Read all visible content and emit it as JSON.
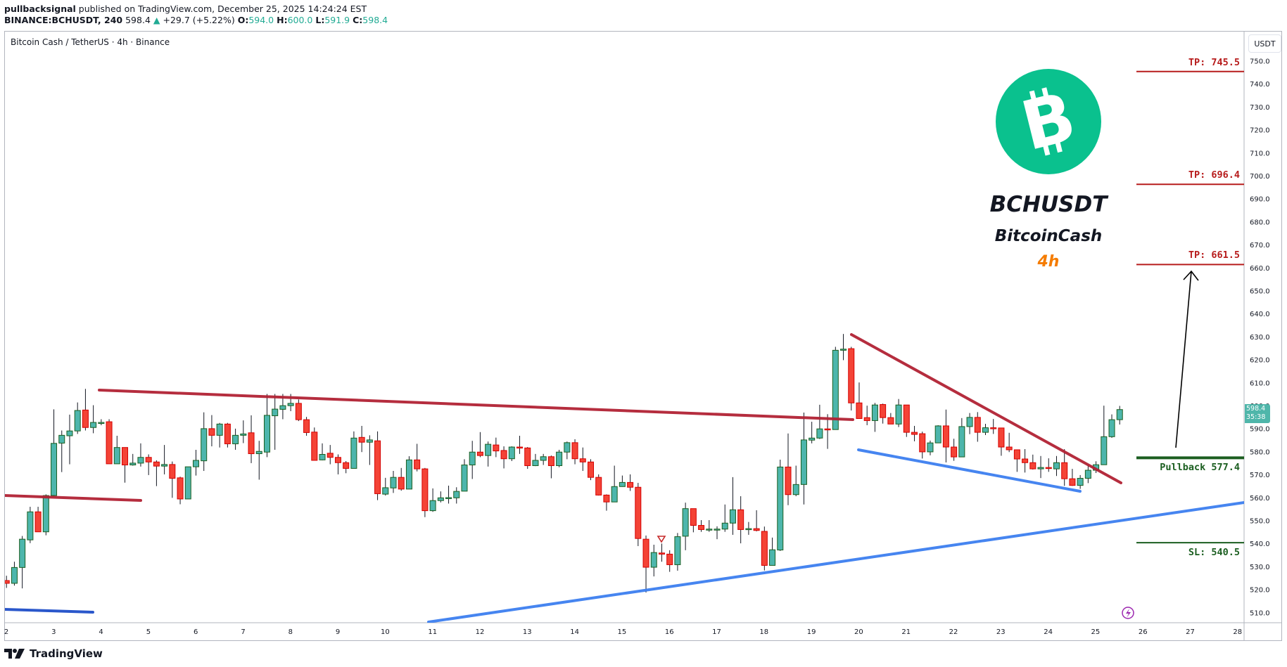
{
  "header": {
    "publisher": "pullbacksignal",
    "published_text": " published on TradingView.com, December 25, 2025 14:24:24 EST",
    "symbol_interval": "BINANCE:BCHUSDT, 240",
    "last": "598.4",
    "change": "+29.7 (+5.22%)",
    "o_label": "O:",
    "o": "594.0",
    "h_label": "H:",
    "h": "600.0",
    "l_label": "L:",
    "l": "591.9",
    "c_label": "C:",
    "c": "598.4"
  },
  "chart_title": "Bitcoin Cash / TetherUS · 4h · Binance",
  "currency": "USDT",
  "last_price_tag": {
    "price": "598.4",
    "countdown": "35:38"
  },
  "branding": {
    "ticker": "BCHUSDT",
    "name": "BitcoinCash",
    "timeframe": "4h",
    "logo_color": "#0ac18e",
    "timeframe_color": "#f57c00"
  },
  "levels": [
    {
      "label": "TP: 745.5",
      "price": 745.5,
      "color": "#b71c1c"
    },
    {
      "label": "TP: 696.4",
      "price": 696.4,
      "color": "#b71c1c"
    },
    {
      "label": "TP: 661.5",
      "price": 661.5,
      "color": "#b71c1c"
    },
    {
      "label": "Pullback 577.4",
      "price": 577.4,
      "color": "#1b5e20"
    },
    {
      "label": "SL: 540.5",
      "price": 540.5,
      "color": "#1b5e20"
    }
  ],
  "footer": {
    "brand": "TradingView"
  },
  "chart_data": {
    "type": "candlestick",
    "title": "Bitcoin Cash / TetherUS · 4h · Binance",
    "symbol": "BINANCE:BCHUSDT",
    "interval": "4h",
    "ylabel": "USDT",
    "ylim": [
      505,
      755
    ],
    "y_ticks": [
      510,
      520,
      530,
      540,
      550,
      560,
      570,
      580,
      590,
      600,
      610,
      620,
      630,
      640,
      650,
      660,
      670,
      680,
      690,
      700,
      710,
      720,
      730,
      740,
      750
    ],
    "x_ticks": [
      "2",
      "3",
      "4",
      "5",
      "6",
      "7",
      "8",
      "9",
      "10",
      "11",
      "12",
      "13",
      "14",
      "15",
      "16",
      "17",
      "18",
      "19",
      "20",
      "21",
      "22",
      "23",
      "24",
      "25",
      "26",
      "27",
      "28"
    ],
    "grid": false,
    "colors": {
      "up": "#4db6ac",
      "up_border": "#1b5e20",
      "down": "#f44336",
      "down_border": "#d50000"
    },
    "ohlc": [
      [
        523.0,
        535.0,
        520.3,
        524.0
      ],
      [
        524.0,
        526.1,
        520.8,
        522.8
      ],
      [
        522.8,
        532.2,
        521.8,
        529.7
      ],
      [
        529.7,
        543.4,
        520.6,
        542.0
      ],
      [
        541.7,
        556.1,
        540.3,
        553.9
      ],
      [
        553.9,
        556.1,
        545.2,
        545.2
      ],
      [
        545.2,
        561.5,
        543.7,
        561.0
      ],
      [
        561.0,
        598.5,
        560.7,
        583.7
      ],
      [
        583.8,
        589.3,
        571.2,
        587.2
      ],
      [
        587.0,
        596.2,
        574.6,
        589.1
      ],
      [
        589.1,
        601.5,
        587.8,
        598.0
      ],
      [
        598.2,
        607.4,
        589.3,
        590.6
      ],
      [
        590.6,
        600.3,
        588.1,
        592.8
      ],
      [
        592.6,
        594.2,
        591.6,
        592.8
      ],
      [
        593.1,
        594.2,
        574.8,
        574.8
      ],
      [
        574.8,
        587.0,
        574.8,
        581.9
      ],
      [
        581.9,
        581.9,
        566.6,
        574.3
      ],
      [
        574.3,
        579.1,
        574.0,
        575.1
      ],
      [
        575.1,
        583.7,
        573.6,
        577.6
      ],
      [
        577.6,
        578.9,
        569.9,
        575.6
      ],
      [
        575.6,
        576.3,
        565.1,
        573.8
      ],
      [
        573.8,
        583.0,
        570.2,
        574.5
      ],
      [
        574.5,
        575.8,
        560.0,
        568.5
      ],
      [
        568.7,
        569.2,
        557.2,
        559.5
      ],
      [
        559.5,
        573.5,
        559.5,
        573.5
      ],
      [
        573.5,
        580.9,
        569.7,
        576.3
      ],
      [
        576.1,
        597.2,
        571.7,
        590.1
      ],
      [
        590.1,
        596.0,
        582.4,
        587.2
      ],
      [
        587.2,
        592.6,
        581.9,
        592.1
      ],
      [
        592.1,
        592.6,
        581.9,
        583.5
      ],
      [
        583.5,
        590.1,
        580.9,
        587.2
      ],
      [
        587.2,
        593.7,
        583.8,
        587.8
      ],
      [
        588.3,
        595.9,
        575.1,
        579.2
      ],
      [
        579.2,
        584.8,
        567.9,
        580.2
      ],
      [
        579.9,
        605.2,
        577.7,
        595.9
      ],
      [
        595.7,
        605.2,
        580.9,
        598.6
      ],
      [
        598.5,
        605.2,
        594.2,
        600.1
      ],
      [
        600.1,
        605.2,
        597.7,
        601.1
      ],
      [
        601.1,
        602.8,
        593.4,
        594.0
      ],
      [
        594.0,
        595.2,
        587.0,
        588.4
      ],
      [
        588.6,
        590.6,
        576.3,
        576.3
      ],
      [
        576.5,
        583.7,
        576.3,
        578.9
      ],
      [
        579.4,
        583.0,
        574.6,
        577.6
      ],
      [
        577.6,
        578.9,
        570.2,
        575.3
      ],
      [
        575.3,
        576.0,
        570.7,
        572.8
      ],
      [
        572.8,
        588.9,
        572.8,
        586.0
      ],
      [
        586.3,
        591.3,
        579.9,
        584.2
      ],
      [
        584.2,
        587.2,
        574.3,
        585.2
      ],
      [
        584.8,
        588.9,
        559.0,
        561.8
      ],
      [
        561.6,
        568.7,
        561.0,
        564.4
      ],
      [
        564.3,
        571.7,
        562.1,
        568.9
      ],
      [
        568.9,
        573.0,
        563.1,
        563.8
      ],
      [
        563.8,
        578.1,
        563.8,
        576.5
      ],
      [
        576.5,
        583.5,
        571.5,
        572.6
      ],
      [
        572.6,
        573.0,
        551.6,
        554.4
      ],
      [
        554.4,
        564.1,
        553.9,
        558.8
      ],
      [
        558.8,
        562.8,
        558.0,
        560.0
      ],
      [
        560.0,
        565.3,
        557.5,
        560.1
      ],
      [
        560.0,
        564.6,
        557.5,
        562.8
      ],
      [
        562.9,
        576.8,
        562.9,
        574.3
      ],
      [
        574.3,
        584.8,
        568.2,
        579.9
      ],
      [
        579.9,
        588.6,
        577.7,
        578.4
      ],
      [
        578.4,
        584.5,
        573.6,
        583.3
      ],
      [
        583.0,
        586.2,
        577.7,
        580.4
      ],
      [
        580.6,
        582.4,
        572.8,
        577.0
      ],
      [
        577.0,
        582.4,
        576.0,
        582.1
      ],
      [
        582.1,
        587.0,
        579.1,
        581.9
      ],
      [
        581.7,
        582.1,
        572.6,
        574.0
      ],
      [
        574.0,
        579.1,
        573.8,
        576.3
      ],
      [
        576.3,
        579.1,
        574.3,
        577.9
      ],
      [
        577.9,
        578.4,
        568.5,
        574.0
      ],
      [
        574.0,
        580.9,
        573.3,
        579.9
      ],
      [
        579.9,
        584.5,
        576.8,
        584.0
      ],
      [
        584.0,
        585.5,
        574.6,
        577.0
      ],
      [
        577.0,
        581.9,
        571.7,
        575.6
      ],
      [
        575.6,
        576.8,
        567.7,
        568.9
      ],
      [
        568.9,
        570.2,
        561.0,
        561.2
      ],
      [
        561.2,
        561.5,
        554.4,
        558.2
      ],
      [
        558.2,
        574.0,
        558.2,
        564.9
      ],
      [
        564.9,
        569.7,
        564.8,
        566.7
      ],
      [
        566.7,
        570.2,
        563.0,
        564.6
      ],
      [
        564.6,
        566.5,
        539.0,
        542.3
      ],
      [
        542.0,
        543.6,
        518.8,
        529.8
      ],
      [
        529.8,
        539.6,
        525.8,
        536.2
      ],
      [
        536.0,
        540.1,
        532.2,
        535.5
      ],
      [
        535.5,
        537.2,
        527.8,
        530.9
      ],
      [
        530.9,
        544.7,
        528.3,
        543.1
      ],
      [
        543.3,
        557.9,
        537.2,
        555.3
      ],
      [
        555.3,
        555.3,
        545.0,
        548.0
      ],
      [
        548.0,
        550.3,
        545.2,
        546.2
      ],
      [
        546.2,
        550.3,
        545.2,
        546.4
      ],
      [
        546.1,
        547.6,
        542.0,
        546.4
      ],
      [
        546.4,
        557.1,
        545.2,
        549.0
      ],
      [
        549.0,
        569.0,
        543.9,
        554.8
      ],
      [
        554.8,
        560.7,
        540.2,
        546.2
      ],
      [
        546.3,
        549.5,
        543.9,
        546.6
      ],
      [
        546.6,
        554.6,
        545.4,
        545.8
      ],
      [
        545.4,
        547.5,
        528.4,
        530.6
      ],
      [
        530.6,
        542.7,
        530.6,
        537.4
      ],
      [
        537.3,
        576.6,
        536.9,
        573.4
      ],
      [
        573.4,
        588.0,
        556.8,
        561.4
      ],
      [
        561.4,
        574.0,
        560.7,
        565.8
      ],
      [
        565.8,
        597.1,
        557.1,
        585.2
      ],
      [
        585.1,
        593.1,
        583.7,
        586.0
      ],
      [
        586.0,
        600.5,
        585.6,
        590.0
      ],
      [
        590.0,
        596.4,
        581.3,
        589.8
      ],
      [
        589.7,
        625.7,
        589.7,
        624.2
      ],
      [
        624.2,
        631.3,
        619.9,
        624.7
      ],
      [
        624.9,
        625.7,
        598.0,
        601.3
      ],
      [
        601.3,
        610.2,
        594.5,
        594.5
      ],
      [
        594.9,
        600.1,
        591.6,
        593.6
      ],
      [
        593.6,
        601.3,
        588.7,
        600.4
      ],
      [
        600.6,
        601.0,
        592.3,
        594.9
      ],
      [
        594.9,
        596.9,
        592.1,
        592.1
      ],
      [
        592.1,
        603.0,
        590.8,
        600.4
      ],
      [
        600.4,
        600.4,
        586.5,
        588.5
      ],
      [
        588.5,
        591.3,
        584.6,
        587.6
      ],
      [
        587.9,
        588.8,
        577.1,
        580.0
      ],
      [
        580.0,
        584.9,
        578.5,
        583.9
      ],
      [
        583.9,
        591.6,
        583.9,
        591.3
      ],
      [
        591.3,
        598.4,
        575.4,
        582.1
      ],
      [
        582.1,
        585.7,
        576.1,
        577.8
      ],
      [
        577.8,
        594.7,
        577.8,
        591.0
      ],
      [
        591.0,
        596.9,
        587.7,
        595.0
      ],
      [
        595.0,
        597.3,
        584.4,
        588.5
      ],
      [
        588.5,
        592.2,
        587.3,
        590.5
      ],
      [
        590.5,
        594.3,
        587.8,
        590.3
      ],
      [
        590.4,
        590.4,
        578.3,
        582.1
      ],
      [
        582.1,
        588.3,
        579.9,
        580.9
      ],
      [
        580.9,
        580.9,
        571.3,
        576.9
      ],
      [
        576.9,
        581.2,
        571.0,
        575.3
      ],
      [
        575.3,
        578.8,
        572.3,
        572.6
      ],
      [
        572.6,
        578.2,
        568.6,
        573.2
      ],
      [
        573.2,
        577.2,
        571.3,
        572.9
      ],
      [
        572.6,
        578.2,
        569.5,
        575.3
      ],
      [
        575.3,
        581.2,
        565.2,
        568.3
      ],
      [
        568.3,
        572.6,
        565.2,
        565.4
      ],
      [
        565.4,
        569.9,
        563.9,
        568.5
      ],
      [
        568.5,
        574.3,
        566.4,
        572.0
      ],
      [
        572.0,
        575.9,
        570.8,
        574.4
      ],
      [
        574.4,
        600.1,
        574.4,
        586.6
      ],
      [
        586.6,
        596.3,
        586.1,
        594.0
      ],
      [
        594.0,
        600.0,
        591.9,
        598.4
      ]
    ],
    "annotations": [
      {
        "type": "trendline",
        "name": "resistance-long",
        "color": "#b22234",
        "from": [
          141,
          555
        ],
        "to": [
          1212,
          597
        ]
      },
      {
        "type": "trendline",
        "name": "resistance-left",
        "color": "#b22234",
        "from": [
          7,
          705
        ],
        "to": [
          200,
          712
        ]
      },
      {
        "type": "trendline",
        "name": "wedge-upper",
        "color": "#b22234",
        "from": [
          1210,
          476
        ],
        "to": [
          1593,
          687
        ]
      },
      {
        "type": "trendline",
        "name": "support-left",
        "color": "#1f4fc9",
        "from": [
          7,
          867
        ],
        "to": [
          132,
          871
        ]
      },
      {
        "type": "trendline",
        "name": "support-long",
        "color": "#3d7ff0",
        "from": [
          609,
          885
        ],
        "to": [
          1768,
          715
        ]
      },
      {
        "type": "trendline",
        "name": "wedge-lower",
        "color": "#3d7ff0",
        "from": [
          1220,
          640
        ],
        "to": [
          1535,
          699
        ]
      },
      {
        "type": "arrow",
        "color": "#000000",
        "from": [
          1671,
          637
        ],
        "to": [
          1693,
          386
        ]
      }
    ]
  }
}
